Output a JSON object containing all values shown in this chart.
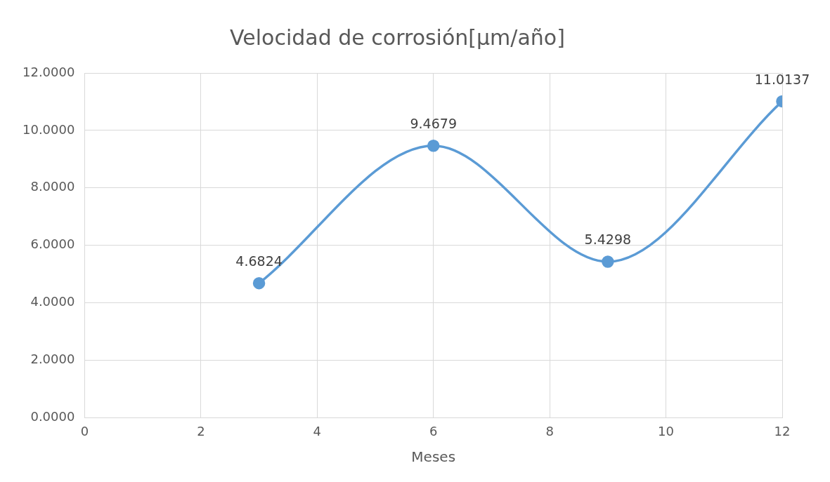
{
  "chart_data": {
    "type": "line",
    "title": "Velocidad de corrosión[µm/año]",
    "xlabel": "Meses",
    "x": [
      3,
      6,
      9,
      12
    ],
    "series": [
      {
        "color": "#5b9bd5",
        "values": [
          4.6824,
          9.4679,
          5.4298,
          11.0137
        ]
      }
    ],
    "xlim": [
      0,
      12
    ],
    "xticks": [
      0,
      2,
      4,
      6,
      8,
      10,
      12
    ],
    "ylim": [
      0,
      12
    ],
    "yticks": [
      {
        "value": 0,
        "label": "0.0000"
      },
      {
        "value": 2,
        "label": "2.0000"
      },
      {
        "value": 4,
        "label": "4.0000"
      },
      {
        "value": 6,
        "label": "6.0000"
      },
      {
        "value": 8,
        "label": "8.0000"
      },
      {
        "value": 10,
        "label": "10.0000"
      },
      {
        "value": 12,
        "label": "12.0000"
      }
    ],
    "grid": true,
    "marker": "circle",
    "line_style": "solid",
    "data_labels": true,
    "legend": false
  }
}
